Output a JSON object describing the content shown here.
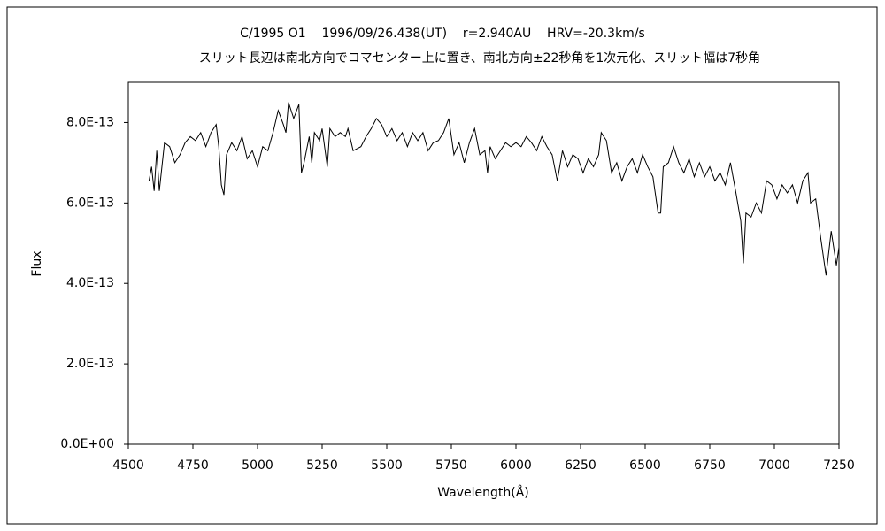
{
  "chart_data": {
    "type": "line",
    "title": "C/1995 O1    1996/09/26.438(UT)    r=2.940AU    HRV=-20.3km/s",
    "subtitle": "スリット長辺は南北方向でコマセンター上に置き、南北方向±22秒角を1次元化、スリット幅は7秒角",
    "x_label": "Wavelength(Å)",
    "y_label": "Flux",
    "color": "#000000",
    "grid": false,
    "xlim": [
      4500,
      7250
    ],
    "xticks": [
      4500,
      4750,
      5000,
      5250,
      5500,
      5750,
      6000,
      6250,
      6500,
      6750,
      7000,
      7250
    ],
    "ylim": [
      0,
      9e-13
    ],
    "yticks": [
      {
        "value": 0,
        "label": "0.0E+00"
      },
      {
        "value": 2e-13,
        "label": "2.0E-13"
      },
      {
        "value": 4e-13,
        "label": "4.0E-13"
      },
      {
        "value": 6e-13,
        "label": "6.0E-13"
      },
      {
        "value": 8e-13,
        "label": "8.0E-13"
      }
    ],
    "x": [
      4580,
      4590,
      4600,
      4610,
      4620,
      4640,
      4660,
      4680,
      4700,
      4720,
      4740,
      4760,
      4780,
      4800,
      4820,
      4840,
      4850,
      4860,
      4870,
      4880,
      4900,
      4920,
      4940,
      4960,
      4980,
      5000,
      5020,
      5040,
      5060,
      5080,
      5100,
      5110,
      5120,
      5140,
      5160,
      5170,
      5180,
      5200,
      5210,
      5220,
      5240,
      5250,
      5270,
      5280,
      5300,
      5320,
      5340,
      5350,
      5370,
      5400,
      5420,
      5440,
      5460,
      5480,
      5500,
      5520,
      5540,
      5560,
      5580,
      5600,
      5620,
      5640,
      5660,
      5680,
      5700,
      5720,
      5740,
      5760,
      5780,
      5800,
      5820,
      5840,
      5860,
      5880,
      5890,
      5900,
      5920,
      5940,
      5960,
      5980,
      6000,
      6020,
      6040,
      6060,
      6080,
      6100,
      6120,
      6140,
      6160,
      6180,
      6200,
      6220,
      6240,
      6260,
      6280,
      6300,
      6320,
      6330,
      6350,
      6370,
      6390,
      6410,
      6430,
      6450,
      6470,
      6490,
      6510,
      6530,
      6550,
      6560,
      6570,
      6590,
      6610,
      6630,
      6650,
      6670,
      6690,
      6710,
      6730,
      6750,
      6770,
      6790,
      6810,
      6830,
      6850,
      6870,
      6880,
      6890,
      6910,
      6930,
      6950,
      6970,
      6990,
      7010,
      7030,
      7050,
      7070,
      7090,
      7110,
      7130,
      7140,
      7160,
      7180,
      7200,
      7220,
      7240,
      7250
    ],
    "values": [
      6.55e-13,
      6.9e-13,
      6.3e-13,
      7.3e-13,
      6.3e-13,
      7.5e-13,
      7.4e-13,
      7e-13,
      7.2e-13,
      7.5e-13,
      7.65e-13,
      7.55e-13,
      7.75e-13,
      7.4e-13,
      7.75e-13,
      7.95e-13,
      7.4e-13,
      6.45e-13,
      6.2e-13,
      7.2e-13,
      7.5e-13,
      7.3e-13,
      7.65e-13,
      7.1e-13,
      7.3e-13,
      6.9e-13,
      7.4e-13,
      7.3e-13,
      7.75e-13,
      8.3e-13,
      7.95e-13,
      7.75e-13,
      8.5e-13,
      8.1e-13,
      8.45e-13,
      6.75e-13,
      7e-13,
      7.65e-13,
      7e-13,
      7.75e-13,
      7.55e-13,
      7.85e-13,
      6.9e-13,
      7.85e-13,
      7.65e-13,
      7.75e-13,
      7.65e-13,
      7.85e-13,
      7.3e-13,
      7.4e-13,
      7.65e-13,
      7.85e-13,
      8.1e-13,
      7.95e-13,
      7.65e-13,
      7.85e-13,
      7.55e-13,
      7.75e-13,
      7.4e-13,
      7.75e-13,
      7.55e-13,
      7.75e-13,
      7.3e-13,
      7.5e-13,
      7.55e-13,
      7.75e-13,
      8.1e-13,
      7.2e-13,
      7.5e-13,
      7e-13,
      7.5e-13,
      7.85e-13,
      7.2e-13,
      7.3e-13,
      6.75e-13,
      7.4e-13,
      7.1e-13,
      7.3e-13,
      7.5e-13,
      7.4e-13,
      7.5e-13,
      7.4e-13,
      7.65e-13,
      7.5e-13,
      7.3e-13,
      7.65e-13,
      7.4e-13,
      7.2e-13,
      6.55e-13,
      7.3e-13,
      6.9e-13,
      7.2e-13,
      7.1e-13,
      6.75e-13,
      7.1e-13,
      6.9e-13,
      7.2e-13,
      7.75e-13,
      7.55e-13,
      6.75e-13,
      7e-13,
      6.55e-13,
      6.9e-13,
      7.1e-13,
      6.75e-13,
      7.2e-13,
      6.9e-13,
      6.65e-13,
      5.75e-13,
      5.75e-13,
      6.9e-13,
      7e-13,
      7.4e-13,
      7e-13,
      6.75e-13,
      7.1e-13,
      6.65e-13,
      7e-13,
      6.65e-13,
      6.9e-13,
      6.55e-13,
      6.75e-13,
      6.45e-13,
      7e-13,
      6.3e-13,
      5.55e-13,
      4.5e-13,
      5.75e-13,
      5.65e-13,
      6e-13,
      5.75e-13,
      6.55e-13,
      6.45e-13,
      6.1e-13,
      6.45e-13,
      6.25e-13,
      6.45e-13,
      6e-13,
      6.55e-13,
      6.75e-13,
      6e-13,
      6.1e-13,
      5.1e-13,
      4.2e-13,
      5.3e-13,
      4.45e-13,
      4.9e-13
    ]
  }
}
